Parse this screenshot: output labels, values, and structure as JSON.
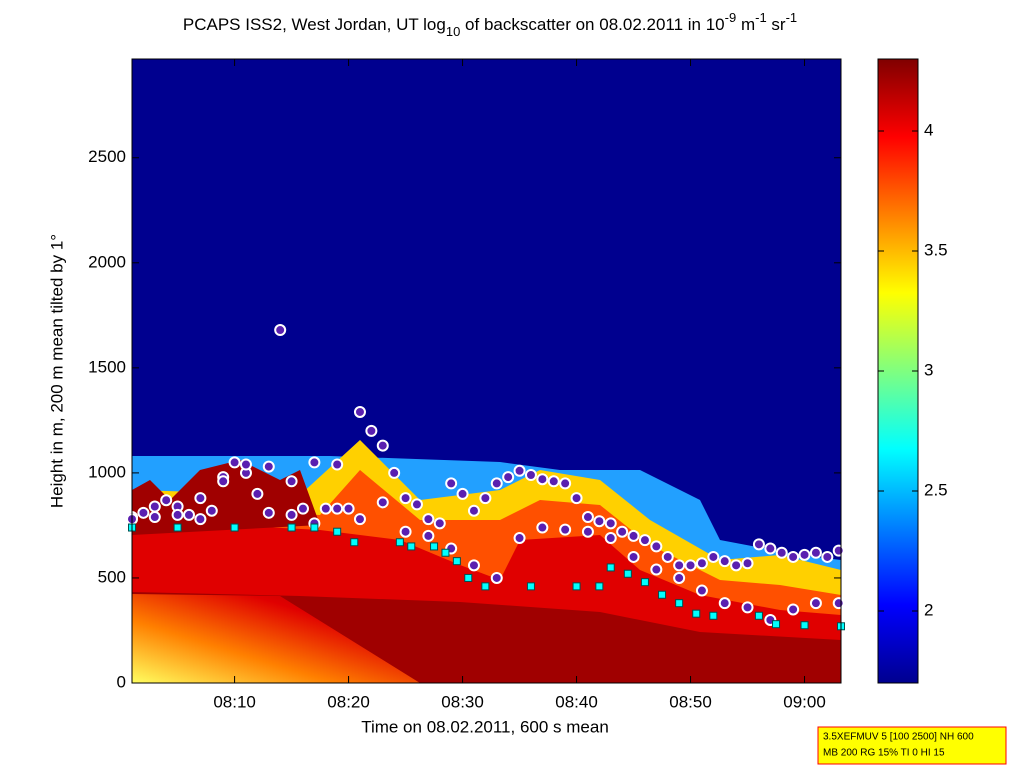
{
  "chart_data": {
    "type": "scatter",
    "title_parts": [
      "PCAPS ISS2, West Jordan, UT log",
      "10",
      " of backscatter on 08.02.2011 in 10",
      "-9",
      " m",
      "-1",
      " sr",
      "-1"
    ],
    "xlabel": "Time on 08.02.2011, 600 s mean",
    "ylabel": "Height in m, 200 m mean tilted by 1°",
    "xlim": [
      1,
      63.2
    ],
    "ylim": [
      0,
      2970
    ],
    "xticks": [
      {
        "value": 10,
        "label": "08:10"
      },
      {
        "value": 20,
        "label": "08:20"
      },
      {
        "value": 30,
        "label": "08:30"
      },
      {
        "value": 40,
        "label": "08:40"
      },
      {
        "value": 50,
        "label": "08:50"
      },
      {
        "value": 60,
        "label": "09:00"
      }
    ],
    "yticks": [
      0,
      500,
      1000,
      1500,
      2000,
      2500
    ],
    "colorbar": {
      "lim": [
        1.7,
        4.3
      ],
      "ticks": [
        2,
        2.5,
        3,
        3.5,
        4
      ]
    },
    "series": [
      {
        "marker": "circle",
        "color": "#5a1fb0",
        "x": [
          1,
          2,
          3,
          4,
          5,
          6,
          7,
          8,
          9,
          10,
          11,
          12,
          13,
          14,
          15,
          16,
          17,
          18,
          19,
          20,
          21,
          22,
          23,
          24,
          25,
          26,
          27,
          28,
          29,
          30,
          31,
          32,
          33,
          34,
          35,
          36,
          37,
          38,
          39,
          40,
          41,
          42,
          43,
          44,
          45,
          46,
          47,
          48,
          49,
          50,
          51,
          52,
          53,
          54,
          55,
          56,
          57,
          58,
          59,
          60,
          61,
          62,
          63
        ],
        "values": [
          790,
          810,
          840,
          870,
          840,
          800,
          880,
          820,
          980,
          1050,
          1000,
          900,
          1030,
          1680,
          960,
          830,
          1050,
          830,
          1040,
          830,
          1290,
          1200,
          1130,
          1000,
          880,
          850,
          780,
          760,
          950,
          900,
          820,
          880,
          950,
          980,
          1010,
          990,
          970,
          960,
          950,
          880,
          790,
          770,
          760,
          720,
          700,
          680,
          650,
          600,
          560,
          560,
          570,
          600,
          580,
          560,
          570,
          660,
          640,
          620,
          600,
          610,
          620,
          600,
          630
        ]
      },
      {
        "marker": "circle",
        "color": "#5a1fb0",
        "x": [
          1,
          3,
          5,
          7,
          9,
          11,
          13,
          15,
          17,
          19,
          21,
          23,
          25,
          27,
          29,
          31,
          33,
          35,
          37,
          39,
          41,
          43,
          45,
          47,
          49,
          51,
          53,
          55,
          57,
          59,
          61,
          63
        ],
        "values": [
          780,
          790,
          800,
          780,
          960,
          1040,
          810,
          800,
          760,
          830,
          780,
          860,
          720,
          700,
          640,
          560,
          500,
          690,
          740,
          730,
          720,
          690,
          600,
          540,
          500,
          440,
          380,
          360,
          300,
          350,
          380,
          380
        ]
      },
      {
        "marker": "square",
        "color": "#00ffff",
        "x": [
          1,
          5,
          10,
          15,
          17,
          19,
          20.5,
          24.5,
          25.5,
          27.5,
          28.5,
          29.5,
          30.5,
          32,
          36,
          40,
          42,
          43,
          44.5,
          46,
          47.5,
          49,
          50.5,
          52,
          56,
          57.5,
          60,
          63.2
        ],
        "values": [
          740,
          740,
          740,
          740,
          740,
          720,
          670,
          670,
          650,
          650,
          620,
          580,
          500,
          460,
          460,
          460,
          460,
          550,
          520,
          480,
          420,
          380,
          330,
          320,
          320,
          280,
          275,
          270
        ]
      }
    ],
    "note_lines": [
      "3.5XEFMUV 5 [100 2500] NH 600",
      "MB 200 RG 15% TI 0 HI 15"
    ]
  }
}
